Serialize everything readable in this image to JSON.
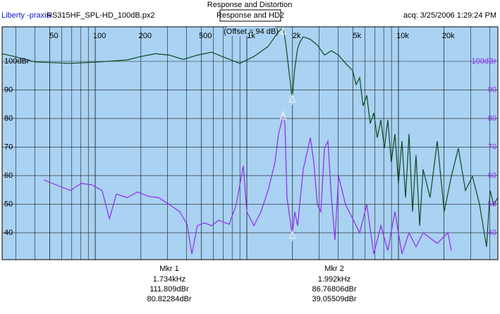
{
  "header": {
    "brand": "Liberty -praxis-",
    "file": "RS315HF_SPL-HD_100dB.px2",
    "acquired": "acq: 3/25/2006 1:29:24 PM"
  },
  "chart_data": {
    "type": "line",
    "title": "Response and Distortion",
    "subtitle": "Response and HD2",
    "annotation": "(Offset = 94 dB)",
    "x_scale": "log",
    "grid": true,
    "xlim": [
      24.3,
      45290
    ],
    "ylim": [
      30.6,
      112.1
    ],
    "xticks": [
      50,
      100,
      200,
      500,
      {
        "value": 1000,
        "label": "1k"
      },
      {
        "value": 2000,
        "label": "2k"
      },
      {
        "value": 5000,
        "label": "5k"
      },
      {
        "value": 10000,
        "label": "10k"
      },
      {
        "value": 20000,
        "label": "20k"
      }
    ],
    "yticks": [
      40,
      50,
      60,
      70,
      80,
      90,
      {
        "value": 100,
        "label": "100dBr"
      }
    ],
    "series": [
      {
        "color": "#0b4a1e",
        "x": [
          24.3,
          29.2,
          40.3,
          68.7,
          105.5,
          162,
          200,
          249,
          308,
          381,
          472,
          585,
          725,
          899,
          1114,
          1380,
          1618,
          1734,
          1802,
          1992,
          2063,
          2158,
          2234,
          2355,
          2623,
          2918,
          3250,
          3614,
          4027,
          4478,
          4989,
          5260,
          5546,
          5848,
          6180,
          6516,
          6871,
          7244,
          7656,
          8072,
          8511,
          8974,
          9484,
          10000,
          10544,
          11143,
          11749,
          12388,
          13062,
          13804,
          14555,
          16181,
          18030,
          20045,
          22336,
          24831,
          27669,
          30761,
          34277,
          38107,
          40272,
          42462,
          45290
        ],
        "values": [
          102.7,
          101.7,
          99.8,
          99.3,
          99.8,
          100.5,
          101.7,
          102.7,
          102.2,
          100.7,
          102.2,
          103.2,
          101.2,
          99.3,
          101.7,
          105.2,
          110.4,
          111.8,
          106.7,
          86.8,
          96.8,
          104.2,
          106.7,
          108.6,
          107.7,
          105.7,
          102.2,
          103.7,
          102.2,
          99.3,
          96.8,
          91.9,
          94.3,
          84.4,
          88.1,
          78.3,
          82.0,
          73.3,
          79.5,
          69.6,
          79.5,
          64.7,
          74.6,
          57.3,
          72.1,
          52.3,
          74.6,
          47.4,
          67.2,
          42.5,
          62.2,
          52.3,
          72.1,
          47.4,
          59.8,
          69.6,
          54.8,
          59.8,
          49.9,
          35.1,
          54.8,
          49.9,
          52.3
        ]
      },
      {
        "color": "#9428f0",
        "x": [
          45.7,
          68.7,
          80.7,
          94.8,
          111,
          124,
          138,
          162,
          190,
          223,
          262,
          308,
          361,
          403,
          434,
          472,
          526,
          585,
          652,
          765,
          851,
          948,
          1000,
          1114,
          1239,
          1380,
          1535,
          1618,
          1734,
          1782,
          1841,
          1992,
          2070,
          2161,
          2355,
          2623,
          2767,
          2918,
          3077,
          3250,
          3428,
          3614,
          3811,
          4027,
          4478,
          4989,
          5546,
          6180,
          6871,
          7656,
          8511,
          9484,
          10544,
          11749,
          13062,
          14555,
          18030,
          21184,
          22336
        ],
        "values": [
          58.5,
          54.8,
          57.3,
          56.8,
          54.8,
          44.9,
          53.6,
          52.3,
          54.3,
          52.8,
          52.3,
          49.9,
          47.4,
          43.0,
          32.6,
          42.5,
          43.5,
          42.5,
          44.4,
          43.0,
          49.9,
          63.5,
          47.4,
          42.5,
          47.4,
          54.8,
          64.7,
          74.6,
          80.8,
          78.3,
          52.3,
          39.1,
          47.4,
          42.5,
          62.2,
          73.3,
          64.7,
          49.9,
          47.4,
          69.6,
          72.1,
          52.3,
          37.5,
          59.8,
          49.9,
          44.9,
          40.0,
          49.9,
          32.6,
          42.5,
          33.8,
          47.4,
          32.6,
          40.0,
          35.1,
          40.0,
          36.3,
          40.0,
          33.8
        ]
      }
    ],
    "markers": [
      {
        "name": "Mkr 1",
        "x": 1734,
        "x_label": "1.734kHz",
        "values": [
          111.809,
          80.82284
        ],
        "value_labels": [
          "111.809dBr",
          "80.82284dBr"
        ]
      },
      {
        "name": "Mkr 2",
        "x": 1992,
        "x_label": "1.992kHz",
        "values": [
          86.76806,
          39.05509
        ],
        "value_labels": [
          "86.76806dBr",
          "39.05509dBr"
        ]
      }
    ]
  }
}
